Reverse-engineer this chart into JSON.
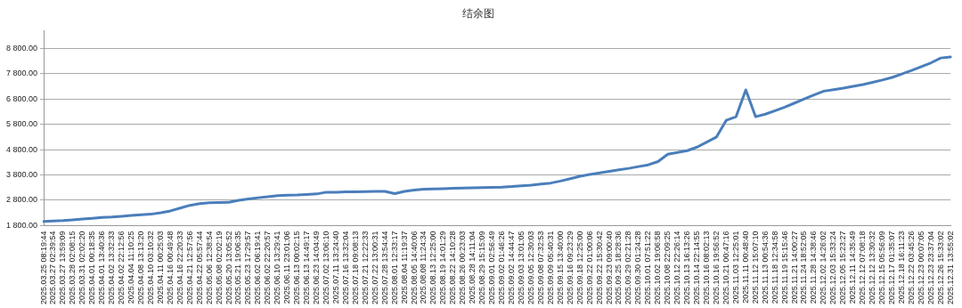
{
  "chart_data": {
    "type": "line",
    "title": "结余图",
    "categories": [
      "2025.03.25 08:19:44",
      "2025.03.27 02:39:54",
      "2025.03.27 13:59:09",
      "2025.03.28 02:08:15",
      "2025.03.31 02:02:20",
      "2025.04.01 00:18:35",
      "2025.04.01 13:40:36",
      "2025.04.02 13:32:33",
      "2025.04.02 22:12:56",
      "2025.04.04 11:10:25",
      "2025.04.08 13:13:20",
      "2025.04.10 03:10:32",
      "2025.04.11 00:25:03",
      "2025.04.16 00:49:48",
      "2025.04.16 22:20:33",
      "2025.04.21 12:57:56",
      "2025.04.22 05:57:44",
      "2025.05.06 12:38:54",
      "2025.05.08 02:02:19",
      "2025.05.20 13:05:52",
      "2025.05.21 19:06:35",
      "2025.05.23 17:29:57",
      "2025.06.02 06:19:41",
      "2025.06.02 22:20:57",
      "2025.06.10 13:29:41",
      "2025.06.11 23:01:06",
      "2025.06.13 00:02:15",
      "2025.06.13 14:49:17",
      "2025.06.23 14:04:49",
      "2025.07.02 13:06:10",
      "2025.07.11 13:24:40",
      "2025.07.16 13:32:04",
      "2025.07.18 09:08:13",
      "2025.07.21 12:22:33",
      "2025.07.22 13:00:31",
      "2025.07.28 13:54:44",
      "2025.08.01 12:33:17",
      "2025.08.04 11:19:37",
      "2025.08.05 14:40:06",
      "2025.08.08 11:24:34",
      "2025.08.13 12:25:00",
      "2025.08.19 14:01:29",
      "2025.08.22 14:10:28",
      "2025.08.26 00:23:03",
      "2025.08.28 14:11:04",
      "2025.08.29 15:15:09",
      "2025.09.01 02:56:49",
      "2025.09.02 01:46:26",
      "2025.09.02 14:44:47",
      "2025.09.03 13:01:05",
      "2025.09.05 12:30:03",
      "2025.09.08 07:32:53",
      "2025.09.09 05:40:31",
      "2025.09.15 13:40:00",
      "2025.09.16 09:23:29",
      "2025.09.18 12:25:00",
      "2025.09.22 01:00:06",
      "2025.09.22 15:30:42",
      "2025.09.23 09:00:40",
      "2025.09.25 18:28:36",
      "2025.09.29 02:21:28",
      "2025.09.30 01:24:28",
      "2025.10.01 07:51:22",
      "2025.10.02 19:06:58",
      "2025.10.08 22:09:25",
      "2025.10.12 22:26:14",
      "2025.10.13 16:13:26",
      "2025.10.14 22:14:55",
      "2025.10.16 08:02:13",
      "2025.10.16 19:56:52",
      "2025.10.21 00:47:16",
      "2025.11.03 12:25:01",
      "2025.11.11 00:48:40",
      "2025.11.12 15:07:10",
      "2025.11.13 00:54:36",
      "2025.11.18 12:34:58",
      "2025.11.19 15:15:46",
      "2025.11.21 14:00:27",
      "2025.11.24 18:52:05",
      "2025.11.28 14:38:46",
      "2025.12.02 14:26:02",
      "2025.12.03 15:33:24",
      "2025.12.05 15:23:27",
      "2025.12.11 14:35:49",
      "2025.12.12 07:08:18",
      "2025.12.12 13:30:32",
      "2025.12.15 05:56:09",
      "2025.12.17 01:35:07",
      "2025.12.18 16:11:23",
      "2025.12.22 03:45:26",
      "2025.12.23 00:07:05",
      "2025.12.23 23:37:04",
      "2025.12.26 15:33:02",
      "2025.12.31 13:55:02"
    ],
    "series": [
      {
        "color": "#4a7ebb",
        "values": [
          1960,
          1980,
          2000,
          2030,
          2060,
          2090,
          2120,
          2140,
          2170,
          2200,
          2230,
          2250,
          2310,
          2380,
          2490,
          2600,
          2670,
          2700,
          2710,
          2720,
          2800,
          2850,
          2900,
          2940,
          2980,
          3000,
          3010,
          3030,
          3050,
          3120,
          3120,
          3130,
          3130,
          3140,
          3150,
          3150,
          3060,
          3150,
          3200,
          3240,
          3250,
          3260,
          3270,
          3280,
          3290,
          3300,
          3310,
          3320,
          3340,
          3370,
          3400,
          3440,
          3480,
          3560,
          3650,
          3750,
          3820,
          3880,
          3940,
          4000,
          4060,
          4130,
          4200,
          4330,
          4620,
          4690,
          4760,
          4900,
          5100,
          5300,
          5960,
          6100,
          7160,
          6100,
          6200,
          6340,
          6480,
          6640,
          6800,
          6960,
          7110,
          7170,
          7230,
          7300,
          7370,
          7460,
          7550,
          7650,
          7790,
          7930,
          8080,
          8230,
          8420,
          8460
        ]
      }
    ],
    "ylim": [
      1800,
      9500
    ],
    "yticks": [
      {
        "value": 1800,
        "label": "1 800.00"
      },
      {
        "value": 2800,
        "label": "2 800.00"
      },
      {
        "value": 3800,
        "label": "3 800.00"
      },
      {
        "value": 4800,
        "label": "4 800.00"
      },
      {
        "value": 5800,
        "label": "5 800.00"
      },
      {
        "value": 6800,
        "label": "6 800.00"
      },
      {
        "value": 7800,
        "label": "7 800.00"
      },
      {
        "value": 8800,
        "label": "8 800.00"
      }
    ],
    "grid": "y",
    "legend": false,
    "marker": "none",
    "line_style": "solid"
  }
}
